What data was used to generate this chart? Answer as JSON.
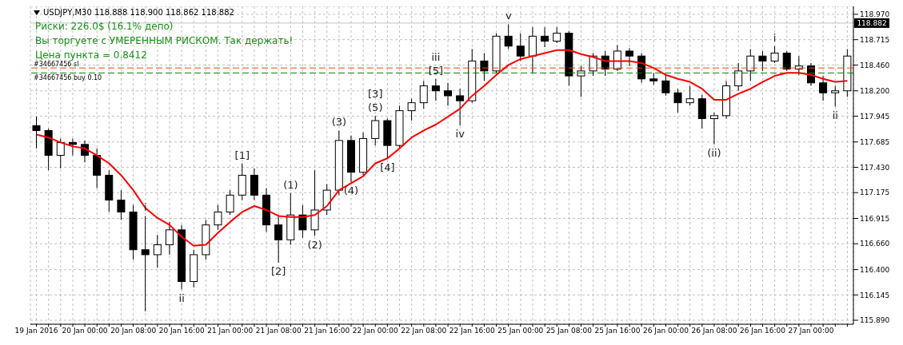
{
  "chart_data": {
    "type": "candlestick",
    "title": "USDJPY,M30  118.888 118.900 118.862 118.882",
    "categories": [
      "19 Jan 2016",
      null,
      null,
      null,
      "20 Jan 00:00",
      null,
      null,
      null,
      "20 Jan 08:00",
      null,
      null,
      null,
      "20 Jan 16:00",
      null,
      null,
      null,
      "21 Jan 00:00",
      null,
      null,
      null,
      "21 Jan 08:00",
      null,
      null,
      null,
      "21 Jan 16:00",
      null,
      null,
      null,
      "22 Jan 00:00",
      null,
      null,
      null,
      "22 Jan 08:00",
      null,
      null,
      null,
      "22 Jan 16:00",
      null,
      null,
      null,
      "25 Jan 00:00",
      null,
      null,
      null,
      "25 Jan 08:00",
      null,
      null,
      null,
      "25 Jan 16:00",
      null,
      null,
      null,
      "26 Jan 00:00",
      null,
      null,
      null,
      "26 Jan 08:00",
      null,
      null,
      null,
      "26 Jan 16:00",
      null,
      null,
      null,
      "27 Jan 00:00",
      null,
      null,
      null
    ],
    "ylim": [
      115.85,
      119.05
    ],
    "yticks": [
      {
        "value": 115.89,
        "label": "115.890"
      },
      116.145,
      {
        "value": 116.4,
        "label": "116.400"
      },
      {
        "value": 116.66,
        "label": "116.660"
      },
      116.915,
      117.175,
      {
        "value": 117.43,
        "label": "117.430"
      },
      117.685,
      117.945,
      {
        "value": 118.2,
        "label": "118.200"
      },
      {
        "value": 118.46,
        "label": "118.460"
      },
      118.715,
      {
        "value": 118.97,
        "label": "118.970"
      }
    ],
    "grid": true,
    "series": [
      {
        "color": "#000000",
        "ohlc": [
          [
            117.85,
            117.94,
            117.62,
            117.8
          ],
          [
            117.8,
            117.82,
            117.4,
            117.55
          ],
          [
            117.55,
            117.72,
            117.42,
            117.68
          ],
          [
            117.68,
            117.72,
            117.55,
            117.66
          ],
          [
            117.66,
            117.7,
            117.48,
            117.55
          ],
          [
            117.55,
            117.62,
            117.22,
            117.35
          ],
          [
            117.35,
            117.4,
            116.98,
            117.1
          ],
          [
            117.1,
            117.2,
            116.9,
            116.98
          ],
          [
            116.98,
            117.05,
            116.5,
            116.6
          ],
          [
            116.6,
            116.94,
            115.98,
            116.55
          ],
          [
            116.55,
            116.75,
            116.42,
            116.65
          ],
          [
            116.65,
            116.88,
            116.55,
            116.8
          ],
          [
            116.8,
            116.85,
            116.2,
            116.28
          ],
          [
            116.28,
            116.6,
            116.22,
            116.55
          ],
          [
            116.55,
            116.9,
            116.5,
            116.85
          ],
          [
            116.85,
            117.05,
            116.8,
            116.98
          ],
          [
            116.98,
            117.2,
            116.95,
            117.15
          ],
          [
            117.15,
            117.47,
            117.1,
            117.35
          ],
          [
            117.35,
            117.42,
            117.1,
            117.15
          ],
          [
            117.15,
            117.22,
            116.78,
            116.85
          ],
          [
            116.85,
            116.95,
            116.47,
            116.7
          ],
          [
            116.7,
            117.17,
            116.65,
            116.95
          ],
          [
            116.95,
            117.05,
            116.72,
            116.8
          ],
          [
            116.8,
            117.4,
            116.74,
            117.0
          ],
          [
            117.0,
            117.26,
            116.95,
            117.2
          ],
          [
            117.2,
            117.8,
            117.15,
            117.7
          ],
          [
            117.7,
            117.75,
            117.28,
            117.38
          ],
          [
            117.38,
            117.78,
            117.35,
            117.72
          ],
          [
            117.72,
            117.95,
            117.65,
            117.9
          ],
          [
            117.9,
            117.92,
            117.52,
            117.65
          ],
          [
            117.65,
            118.05,
            117.62,
            118.0
          ],
          [
            118.0,
            118.12,
            117.9,
            118.08
          ],
          [
            118.08,
            118.3,
            118.02,
            118.25
          ],
          [
            118.25,
            118.32,
            118.1,
            118.2
          ],
          [
            118.2,
            118.28,
            118.05,
            118.15
          ],
          [
            118.15,
            118.22,
            117.85,
            118.1
          ],
          [
            118.1,
            118.62,
            118.08,
            118.5
          ],
          [
            118.5,
            118.58,
            118.3,
            118.4
          ],
          [
            118.4,
            118.78,
            118.38,
            118.75
          ],
          [
            118.75,
            118.87,
            118.62,
            118.65
          ],
          [
            118.65,
            118.78,
            118.5,
            118.55
          ],
          [
            118.55,
            118.84,
            118.38,
            118.75
          ],
          [
            118.75,
            118.84,
            118.64,
            118.7
          ],
          [
            118.7,
            118.84,
            118.68,
            118.78
          ],
          [
            118.78,
            118.8,
            118.25,
            118.35
          ],
          [
            118.35,
            118.45,
            118.14,
            118.4
          ],
          [
            118.4,
            118.58,
            118.35,
            118.55
          ],
          [
            118.55,
            118.6,
            118.35,
            118.42
          ],
          [
            118.42,
            118.66,
            118.4,
            118.6
          ],
          [
            118.6,
            118.63,
            118.45,
            118.55
          ],
          [
            118.55,
            118.58,
            118.28,
            118.32
          ],
          [
            118.32,
            118.38,
            118.26,
            118.3
          ],
          [
            118.3,
            118.36,
            118.15,
            118.18
          ],
          [
            118.18,
            118.22,
            117.98,
            118.08
          ],
          [
            118.08,
            118.25,
            118.05,
            118.12
          ],
          [
            118.12,
            118.16,
            117.82,
            117.92
          ],
          [
            117.92,
            117.98,
            117.66,
            117.95
          ],
          [
            117.95,
            118.3,
            117.92,
            118.25
          ],
          [
            118.25,
            118.48,
            118.2,
            118.4
          ],
          [
            118.4,
            118.62,
            118.3,
            118.55
          ],
          [
            118.55,
            118.6,
            118.4,
            118.5
          ],
          [
            118.5,
            118.65,
            118.48,
            118.58
          ],
          [
            118.58,
            118.6,
            118.4,
            118.42
          ],
          [
            118.42,
            118.55,
            118.36,
            118.45
          ],
          [
            118.45,
            118.48,
            118.25,
            118.28
          ],
          [
            118.28,
            118.35,
            118.1,
            118.18
          ],
          [
            118.18,
            118.25,
            118.04,
            118.2
          ],
          [
            118.2,
            118.62,
            118.14,
            118.55
          ]
        ]
      },
      {
        "type": "line",
        "color": "#ff0000",
        "values": [
          117.76,
          117.73,
          117.68,
          117.64,
          117.62,
          117.55,
          117.47,
          117.35,
          117.2,
          117.02,
          116.92,
          116.85,
          116.73,
          116.64,
          116.65,
          116.77,
          116.88,
          116.98,
          117.04,
          117.0,
          116.94,
          116.93,
          116.93,
          116.95,
          117.04,
          117.2,
          117.27,
          117.34,
          117.47,
          117.52,
          117.62,
          117.73,
          117.8,
          117.86,
          117.94,
          118.02,
          118.15,
          118.25,
          118.36,
          118.46,
          118.52,
          118.55,
          118.58,
          118.61,
          118.61,
          118.57,
          118.54,
          118.5,
          118.5,
          118.5,
          118.48,
          118.43,
          118.36,
          118.32,
          118.29,
          118.22,
          118.11,
          118.11,
          118.17,
          118.22,
          118.29,
          118.35,
          118.38,
          118.38,
          118.36,
          118.32,
          118.29,
          118.3
        ]
      }
    ],
    "ref_lines": [
      {
        "axis": "y",
        "value": 118.882,
        "label": "118.882",
        "color": "#c0c0c0",
        "line_style": "solid"
      },
      {
        "axis": "y",
        "value": 118.43,
        "label": "#34667456 sl",
        "color": "#ff4500",
        "line_style": "dashed"
      },
      {
        "axis": "y",
        "value": 118.38,
        "label": "#34667456 buy 0.10",
        "color": "#008000",
        "line_style": "dashed"
      }
    ],
    "annotations": [
      "Риски: 226.0$ (16.1% депо)",
      "Вы торгуете с УМЕРЕННЫМ РИСКОМ. Так держать!",
      "Цена пункта = 0.8412",
      {
        "text": "i",
        "y": 116.94
      },
      {
        "text": "ii",
        "y": 116.2
      },
      {
        "text": "[1]",
        "y": 117.47
      },
      {
        "text": "[2]",
        "y": 116.47
      },
      {
        "text": "(1)",
        "y": 117.17
      },
      {
        "text": "(2)",
        "y": 116.74
      },
      {
        "text": "(3)",
        "y": 117.8
      },
      {
        "text": "(4)",
        "y": 117.28
      },
      {
        "text": "(5)",
        "y": 117.95
      },
      {
        "text": "[3]",
        "y": 117.95
      },
      {
        "text": "[4]",
        "y": 117.52
      },
      {
        "text": "[5]",
        "y": 118.32
      },
      {
        "text": "iii",
        "y": 118.32
      },
      {
        "text": "iv",
        "y": 117.85
      },
      {
        "text": "v",
        "y": 118.87
      },
      {
        "text": "(ii)",
        "y": 117.66
      },
      {
        "text": "i",
        "y": 118.65
      },
      {
        "text": "ii",
        "y": 118.04
      }
    ]
  }
}
